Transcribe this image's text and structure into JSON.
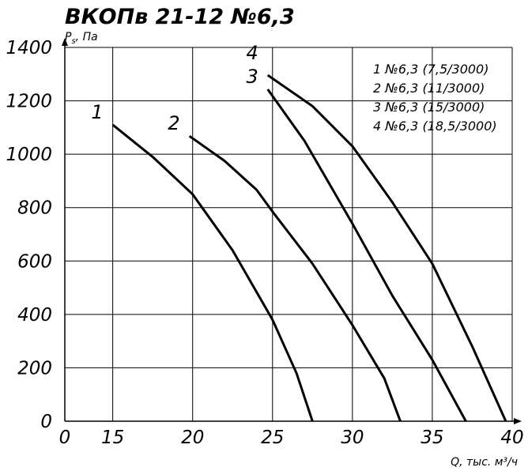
{
  "chart_data": {
    "type": "line",
    "title": "ВКОПв 21-12 №6,3",
    "ylabel_symbol": "P",
    "ylabel_sub": "s",
    "ylabel_unit": ", Па",
    "xlabel": "Q, тыс. м³/ч",
    "xlim": [
      12,
      40
    ],
    "xticks": [
      {
        "value": 12,
        "label": "0"
      },
      15,
      20,
      25,
      30,
      35,
      40
    ],
    "ylim": [
      0,
      1400
    ],
    "yticks": [
      0,
      200,
      400,
      600,
      800,
      1000,
      1200,
      1400
    ],
    "grid": true,
    "legend": "top-right",
    "series": [
      {
        "name": "1 №6,3 (7,5/3000)",
        "curve_label": "1",
        "color": "#000000",
        "x": [
          15,
          17.5,
          20,
          22.5,
          25,
          26.5,
          27.5
        ],
        "values": [
          1110,
          990,
          850,
          640,
          380,
          180,
          0
        ]
      },
      {
        "name": "2 №6,3 (11/3000)",
        "curve_label": "2",
        "color": "#000000",
        "x": [
          19.8,
          22,
          24,
          25,
          27.5,
          30,
          32,
          33
        ],
        "values": [
          1068,
          975,
          867,
          785,
          590,
          360,
          160,
          0
        ]
      },
      {
        "name": "3 №6,3 (15/3000)",
        "curve_label": "3",
        "color": "#000000",
        "x": [
          24.7,
          27,
          30,
          32.5,
          35,
          37.1
        ],
        "values": [
          1243,
          1050,
          740,
          470,
          230,
          0
        ]
      },
      {
        "name": "4 №6,3 (18,5/3000)",
        "curve_label": "4",
        "color": "#000000",
        "x": [
          24.7,
          27.5,
          30,
          32.5,
          35,
          37.5,
          39.6
        ],
        "values": [
          1296,
          1180,
          1030,
          820,
          590,
          280,
          0
        ]
      }
    ]
  }
}
